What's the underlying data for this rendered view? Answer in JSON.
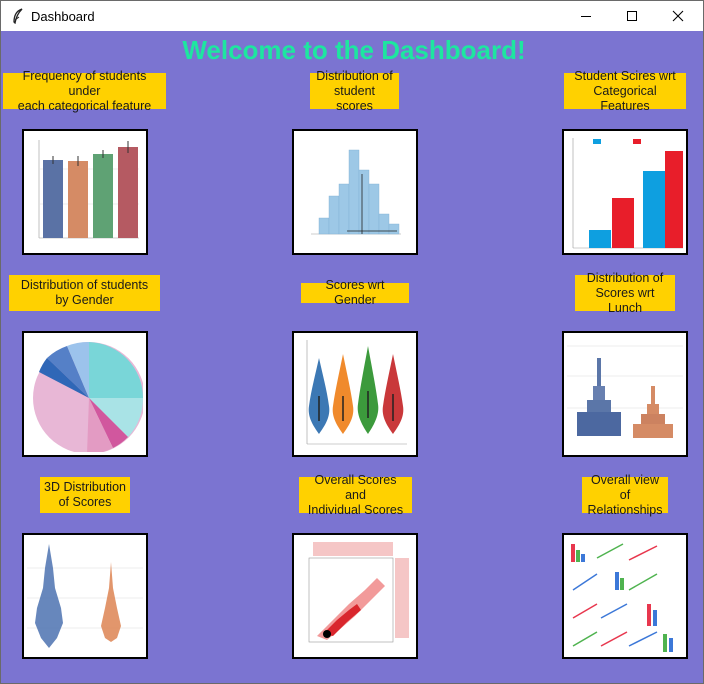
{
  "window": {
    "title": "Dashboard",
    "icon": "feather-icon",
    "controls": {
      "minimize": "minimize-icon",
      "maximize": "maximize-icon",
      "close": "close-icon"
    }
  },
  "heading": "Welcome to the Dashboard!",
  "colors": {
    "background": "#7B74D1",
    "heading": "#1EE6A0",
    "label_bg": "#FFD100"
  },
  "panels": [
    {
      "label": "Frequency of students under\neach categorical feature",
      "chart": "bar-chart"
    },
    {
      "label": "Distribution of\nstudent scores",
      "chart": "histogram"
    },
    {
      "label": "Student Scires wrt\nCategorical Features",
      "chart": "grouped-bar-chart"
    },
    {
      "label": "Distribution of students\nby Gender",
      "chart": "pie-chart"
    },
    {
      "label": "Scores wrt Gender",
      "chart": "violin-plot"
    },
    {
      "label": "Distribution of\nScores wrt Lunch",
      "chart": "boxen-plot"
    },
    {
      "label": "3D Distribution\nof Scores",
      "chart": "swarm-plot"
    },
    {
      "label": "Overall Scores and\nIndividual Scores",
      "chart": "hexbin-joint-plot"
    },
    {
      "label": "Overall view of\nRelationships",
      "chart": "pair-plot"
    }
  ]
}
